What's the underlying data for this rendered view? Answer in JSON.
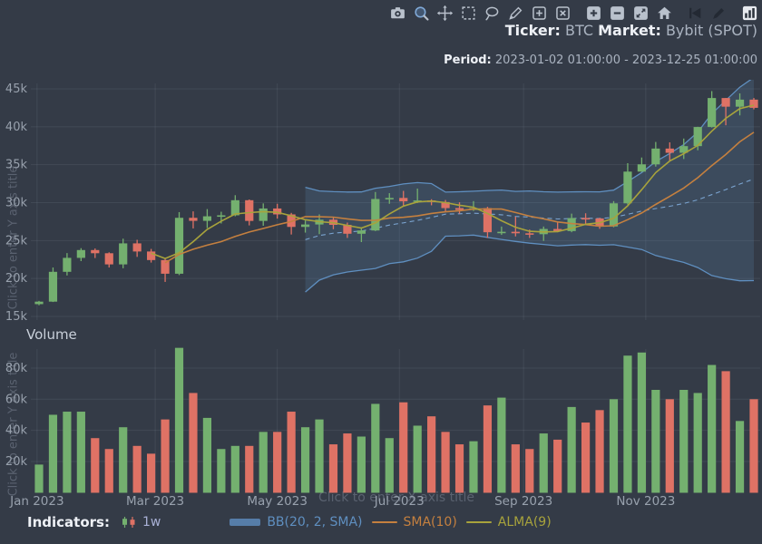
{
  "header": {
    "ticker_label": "Ticker:",
    "ticker_value": "BTC",
    "market_label": "Market:",
    "market_value": "Bybit (SPOT)",
    "period_label": "Period:",
    "period_value": "2023-01-02 01:00:00 - 2023-12-25 01:00:00"
  },
  "toolbar": {
    "icons": [
      "camera",
      "zoom",
      "pan",
      "box-select",
      "lasso",
      "draw",
      "add-box",
      "clear-box",
      "zoom-in",
      "zoom-out",
      "expand",
      "home",
      "back",
      "annotate",
      "chart-style"
    ]
  },
  "overlays": {
    "volume_title": "Volume",
    "y_axis_hint": "Click to enter Y axis title",
    "x_axis_hint": "Click to enter X axis title"
  },
  "legend": {
    "title": "Indicators:",
    "interval_label": "1w",
    "items": [
      {
        "label": "BB(20, 2, SMA)"
      },
      {
        "label": "SMA(10)"
      },
      {
        "label": "ALMA(9)"
      }
    ]
  },
  "colors": {
    "background": "#343b47",
    "axis_text": "#98a1ad",
    "grid": "rgba(190,200,220,0.10)",
    "candle_up": "#74b06f",
    "candle_down": "#df7265",
    "bb_line": "#5f8fc0",
    "bb_basis": "#7aa3cf",
    "bb_fill": "rgba(90,130,175,0.22)",
    "sma": "#c5803f",
    "alma": "#a8a33c",
    "interval_text": "#a9b1d6",
    "hint_text": "#5a6270"
  },
  "chart_data": {
    "type": "candlestick",
    "interval": "1w",
    "unit": "USD",
    "legend_position": "bottom",
    "grid": true,
    "price_axis": {
      "ticks": [
        15000,
        20000,
        25000,
        30000,
        35000,
        40000,
        45000
      ],
      "labels": [
        "15k",
        "20k",
        "25k",
        "30k",
        "35k",
        "40k",
        "45k"
      ],
      "ylim": [
        14500,
        45800
      ]
    },
    "volume_axis": {
      "ticks": [
        20000,
        40000,
        60000,
        80000
      ],
      "labels": [
        "20k",
        "40k",
        "60k",
        "80k"
      ],
      "ylim": [
        0,
        95000
      ]
    },
    "x_ticks": [
      {
        "pos": -0.14,
        "label": "Jan 2023"
      },
      {
        "pos": 8.29,
        "label": "Mar 2023"
      },
      {
        "pos": 17.0,
        "label": "May 2023"
      },
      {
        "pos": 25.71,
        "label": "Jul 2023"
      },
      {
        "pos": 34.57,
        "label": "Sep 2023"
      },
      {
        "pos": 43.29,
        "label": "Nov 2023"
      }
    ],
    "indicators": [
      {
        "name": "BB",
        "params": "20, 2, SMA"
      },
      {
        "name": "SMA",
        "params": "10"
      },
      {
        "name": "ALMA",
        "params": "9"
      }
    ],
    "columns": [
      "week_start",
      "open",
      "high",
      "low",
      "close",
      "volume"
    ],
    "rows": [
      [
        "2023-01-02",
        16620,
        17050,
        16470,
        16950,
        18000
      ],
      [
        "2023-01-09",
        16950,
        21450,
        16900,
        20880,
        50000
      ],
      [
        "2023-01-16",
        20880,
        23350,
        20400,
        22720,
        52000
      ],
      [
        "2023-01-23",
        22720,
        24000,
        22290,
        23750,
        52000
      ],
      [
        "2023-01-30",
        23750,
        23960,
        22700,
        23330,
        35000
      ],
      [
        "2023-02-06",
        23330,
        23450,
        21450,
        21860,
        28000
      ],
      [
        "2023-02-13",
        21860,
        25250,
        21350,
        24630,
        42000
      ],
      [
        "2023-02-20",
        24630,
        25100,
        22850,
        23560,
        30000
      ],
      [
        "2023-02-27",
        23560,
        23900,
        22100,
        22430,
        25000
      ],
      [
        "2023-03-06",
        22430,
        22650,
        19550,
        20630,
        47000
      ],
      [
        "2023-03-13",
        20630,
        28750,
        20450,
        28000,
        93000
      ],
      [
        "2023-03-20",
        28000,
        28850,
        26600,
        27600,
        64000
      ],
      [
        "2023-03-27",
        27600,
        29150,
        26650,
        28200,
        48000
      ],
      [
        "2023-04-03",
        28200,
        28800,
        27250,
        28330,
        28000
      ],
      [
        "2023-04-10",
        28330,
        30980,
        28200,
        30320,
        30000
      ],
      [
        "2023-04-17",
        30320,
        30420,
        27000,
        27590,
        30000
      ],
      [
        "2023-04-24",
        27590,
        29900,
        26950,
        29230,
        39000
      ],
      [
        "2023-05-01",
        29230,
        29850,
        27900,
        28450,
        39000
      ],
      [
        "2023-05-08",
        28450,
        28650,
        25800,
        26800,
        52000
      ],
      [
        "2023-05-15",
        26800,
        27650,
        26050,
        27120,
        42000
      ],
      [
        "2023-05-22",
        27120,
        28450,
        25850,
        27750,
        47000
      ],
      [
        "2023-05-29",
        27750,
        28050,
        26500,
        27070,
        31000
      ],
      [
        "2023-06-05",
        27070,
        27370,
        25350,
        25900,
        38000
      ],
      [
        "2023-06-12",
        25900,
        26750,
        24800,
        26330,
        36000
      ],
      [
        "2023-06-19",
        26330,
        31400,
        26250,
        30480,
        57000
      ],
      [
        "2023-06-26",
        30480,
        31250,
        29850,
        30620,
        35000
      ],
      [
        "2023-07-03",
        30620,
        31550,
        29500,
        30170,
        58000
      ],
      [
        "2023-07-10",
        30170,
        31850,
        29950,
        30290,
        43000
      ],
      [
        "2023-07-17",
        30290,
        30450,
        29650,
        30080,
        49000
      ],
      [
        "2023-07-24",
        30080,
        30350,
        28850,
        29280,
        39000
      ],
      [
        "2023-07-31",
        29280,
        30050,
        28550,
        29040,
        31000
      ],
      [
        "2023-08-07",
        29040,
        30200,
        28900,
        29280,
        33000
      ],
      [
        "2023-08-14",
        29280,
        29450,
        25350,
        26100,
        56000
      ],
      [
        "2023-08-21",
        26100,
        26850,
        25750,
        26160,
        61000
      ],
      [
        "2023-08-28",
        26160,
        28150,
        25550,
        25960,
        31000
      ],
      [
        "2023-09-04",
        25960,
        26450,
        25350,
        25840,
        28000
      ],
      [
        "2023-09-11",
        25840,
        26850,
        24950,
        26530,
        38000
      ],
      [
        "2023-09-18",
        26530,
        27450,
        26100,
        26250,
        34000
      ],
      [
        "2023-09-25",
        26250,
        28550,
        26100,
        27970,
        55000
      ],
      [
        "2023-10-02",
        27970,
        28600,
        27200,
        27920,
        45000
      ],
      [
        "2023-10-09",
        27920,
        28000,
        26550,
        26860,
        53000
      ],
      [
        "2023-10-16",
        26860,
        30200,
        26750,
        29910,
        60000
      ],
      [
        "2023-10-23",
        29910,
        35200,
        29750,
        34090,
        88000
      ],
      [
        "2023-10-30",
        34090,
        35950,
        34050,
        35050,
        90000
      ],
      [
        "2023-11-06",
        35050,
        38000,
        34750,
        37130,
        66000
      ],
      [
        "2023-11-13",
        37130,
        37950,
        35550,
        36570,
        60000
      ],
      [
        "2023-11-20",
        36570,
        38450,
        35750,
        37450,
        66000
      ],
      [
        "2023-11-27",
        37450,
        40000,
        36900,
        39970,
        64000
      ],
      [
        "2023-12-04",
        39970,
        44700,
        39900,
        43790,
        82000
      ],
      [
        "2023-12-11",
        43790,
        43800,
        40200,
        42650,
        78000
      ],
      [
        "2023-12-18",
        42650,
        44400,
        41500,
        43580,
        46000
      ],
      [
        "2023-12-25",
        43580,
        43800,
        42300,
        42500,
        60000
      ]
    ]
  }
}
